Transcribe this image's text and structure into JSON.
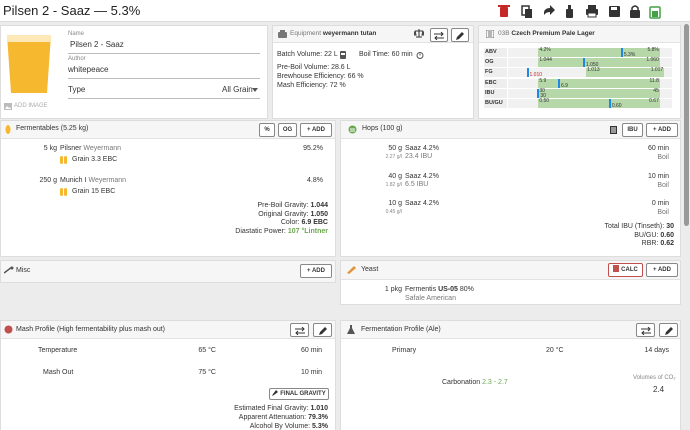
{
  "header": {
    "title": "Pilsen 2 - Saaz — 5.3%"
  },
  "recipe": {
    "name_label": "Name",
    "name": "Pilsen 2 - Saaz",
    "author_label": "Author",
    "author": "whitepeace",
    "type_label": "Type",
    "type": "All Grain",
    "add_image": "ADD IMAGE"
  },
  "equipment": {
    "label": "Equipment",
    "name": "weyermann tutan",
    "batch_volume": "Batch Volume: 22 L",
    "boil_time": "Boil Time: 60 min",
    "pre_boil_volume": "Pre-Boil Volume: 28.6 L",
    "brewhouse_efficiency": "Brewhouse Efficiency: 66 %",
    "mash_efficiency": "Mash Efficiency: 72 %"
  },
  "style": {
    "code": "03B",
    "name": "Czech Premium Pale Lager",
    "rows": [
      {
        "label": "ABV",
        "min": "4.2%",
        "max": "5.8%",
        "value": "5.3%"
      },
      {
        "label": "OG",
        "min": "1.044",
        "max": "1.060",
        "value": "1.050"
      },
      {
        "label": "FG",
        "min": "1.013",
        "max": "1.017",
        "value": "1.010"
      },
      {
        "label": "EBC",
        "min": "5.9",
        "max": "11.8",
        "value": "6.9"
      },
      {
        "label": "IBU",
        "min": "30",
        "max": "45",
        "value": "30"
      },
      {
        "label": "BU/GU",
        "min": "0.50",
        "max": "0.67",
        "value": "0.60"
      }
    ]
  },
  "fermentables": {
    "title": "Fermentables (5.25 kg)",
    "buttons": [
      "%",
      "OG",
      "+ ADD"
    ],
    "items": [
      {
        "amount": "5 kg",
        "name": "Pilsner",
        "supplier": "Weyermann",
        "percent": "95.2%",
        "kind": "Grain",
        "color": "3.3 EBC"
      },
      {
        "amount": "250 g",
        "name": "Munich I",
        "supplier": "Weyermann",
        "percent": "4.8%",
        "kind": "Grain",
        "color": "15 EBC"
      }
    ],
    "summary": [
      {
        "label": "Pre-Boil Gravity:",
        "value": "1.044"
      },
      {
        "label": "Original Gravity:",
        "value": "1.050"
      },
      {
        "label": "Color:",
        "value": "6.9 EBC"
      },
      {
        "label": "Diastatic Power:",
        "value": "107 °Lintner"
      }
    ]
  },
  "hops": {
    "title": "Hops (100 g)",
    "buttons": [
      "IBU",
      "+ ADD"
    ],
    "items": [
      {
        "amount": "50 g",
        "per_liter": "2.27 g/l",
        "name": "Saaz",
        "alpha": "4.2%",
        "ibu": "23.4 IBU",
        "time": "60 min",
        "use": "Boil"
      },
      {
        "amount": "40 g",
        "per_liter": "1.82 g/l",
        "name": "Saaz",
        "alpha": "4.2%",
        "ibu": "6.5 IBU",
        "time": "10 min",
        "use": "Boil"
      },
      {
        "amount": "10 g",
        "per_liter": "0.45 g/l",
        "name": "Saaz",
        "alpha": "4.2%",
        "time": "0 min",
        "use": "Boil"
      }
    ],
    "summary": [
      {
        "label": "Total IBU (Tinseth):",
        "value": "30"
      },
      {
        "label": "BU/GU:",
        "value": "0.60"
      },
      {
        "label": "RBR:",
        "value": "0.62"
      }
    ]
  },
  "misc": {
    "title": "Misc",
    "button": "+ ADD"
  },
  "yeast": {
    "title": "Yeast",
    "buttons": [
      "CALC",
      "+ ADD"
    ],
    "amount": "1 pkg",
    "lab": "Fermentis",
    "product": "US-05",
    "attenuation": "80%",
    "name": "Safale American"
  },
  "mash": {
    "title": "Mash Profile (High fermentability plus mash out)",
    "steps": [
      {
        "name": "Temperature",
        "temp": "65 °C",
        "time": "60 min"
      },
      {
        "name": "Mash Out",
        "temp": "75 °C",
        "time": "10 min"
      }
    ],
    "button": "FINAL GRAVITY",
    "summary": [
      {
        "label": "Estimated Final Gravity:",
        "value": "1.010"
      },
      {
        "label": "Apparent Attenuation:",
        "value": "79.3%"
      },
      {
        "label": "Alcohol By Volume:",
        "value": "5.3%"
      }
    ]
  },
  "fermentation": {
    "title": "Fermentation Profile (Ale)",
    "steps": [
      {
        "name": "Primary",
        "temp": "20 °C",
        "time": "14 days"
      }
    ],
    "carbonation_label": "Carbonation",
    "carbonation_range": "2.3 - 2.7",
    "volumes_label": "Volumes of CO₂",
    "volumes": "2.4"
  }
}
